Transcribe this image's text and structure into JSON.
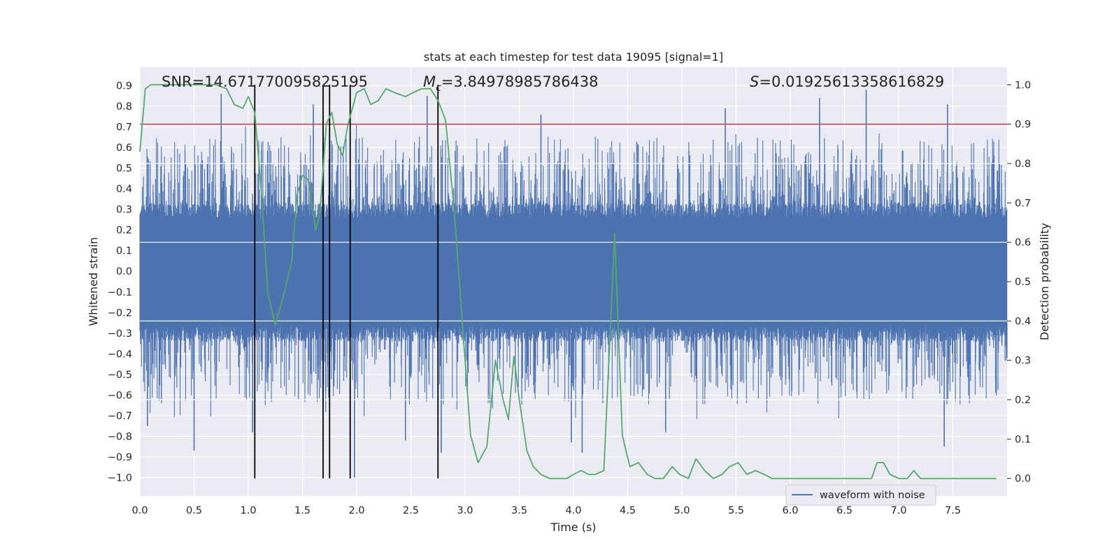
{
  "chart_data": {
    "type": "line",
    "title": "stats at each timestep for test data 19095 [signal=1]",
    "xlabel": "Time (s)",
    "ylabel": "Whitened strain",
    "ylabel_right": "Detection probability",
    "xlim": [
      0.0,
      8.0
    ],
    "ylim": [
      -1.09,
      0.99
    ],
    "ylim_right": [
      -0.045,
      1.045
    ],
    "x_ticks": [
      "0.0",
      "0.5",
      "1.0",
      "1.5",
      "2.0",
      "2.5",
      "3.0",
      "3.5",
      "4.0",
      "4.5",
      "5.0",
      "5.5",
      "6.0",
      "6.5",
      "7.0",
      "7.5"
    ],
    "y_ticks": [
      "0.9",
      "0.8",
      "0.7",
      "0.6",
      "0.5",
      "0.4",
      "0.3",
      "0.2",
      "0.1",
      "0.0",
      "−0.1",
      "−0.2",
      "−0.3",
      "−0.4",
      "−0.5",
      "−0.6",
      "−0.7",
      "−0.8",
      "−0.9",
      "−1.0"
    ],
    "y_ticks_right": [
      "1.0",
      "0.9",
      "0.8",
      "0.7",
      "0.6",
      "0.5",
      "0.4",
      "0.3",
      "0.2",
      "0.1",
      "0.0"
    ],
    "grid": true,
    "legend": {
      "placement": "lower-right",
      "entries": [
        "waveform with noise"
      ]
    },
    "annotations": {
      "snr": "SNR=14.671770095825195",
      "mc_symbol": "M",
      "mc_sub": "c",
      "mc_value": "=3.84978985786438",
      "s_symbol": "S",
      "s_value": "=0.01925613358616829"
    },
    "threshold": {
      "value": 0.9,
      "axis": "right",
      "color": "#c44e52"
    },
    "vertical_markers": [
      1.06,
      1.69,
      1.75,
      1.94,
      2.75
    ],
    "series": [
      {
        "name": "waveform with noise",
        "axis": "left",
        "color": "#4c72b0",
        "x_range": [
          0.0,
          8.0
        ],
        "note_render": "dense noisy waveform, envelope approx ±0.45 with spikes",
        "spikes": [
          {
            "x": 0.07,
            "y": -0.75
          },
          {
            "x": 0.5,
            "y": -0.87
          },
          {
            "x": 0.75,
            "y": 0.86
          },
          {
            "x": 1.04,
            "y": -0.78
          },
          {
            "x": 1.6,
            "y": 0.81
          },
          {
            "x": 1.98,
            "y": -1.0
          },
          {
            "x": 2.45,
            "y": -0.82
          },
          {
            "x": 2.65,
            "y": 0.85
          },
          {
            "x": 2.78,
            "y": -0.88
          },
          {
            "x": 3.7,
            "y": 0.76
          },
          {
            "x": 3.98,
            "y": -0.83
          },
          {
            "x": 4.08,
            "y": -0.88
          },
          {
            "x": 4.85,
            "y": -0.78
          },
          {
            "x": 5.4,
            "y": 0.79
          },
          {
            "x": 6.27,
            "y": 0.84
          },
          {
            "x": 6.7,
            "y": 0.88
          },
          {
            "x": 7.42,
            "y": -0.85
          },
          {
            "x": 7.45,
            "y": 0.81
          }
        ]
      },
      {
        "name": "",
        "axis": "right",
        "color": "#55a868",
        "x": [
          0.0,
          0.05,
          0.1,
          0.2,
          0.3,
          0.4,
          0.5,
          0.6,
          0.7,
          0.8,
          0.87,
          0.95,
          1.0,
          1.06,
          1.12,
          1.18,
          1.25,
          1.32,
          1.4,
          1.45,
          1.5,
          1.55,
          1.58,
          1.62,
          1.66,
          1.72,
          1.77,
          1.82,
          1.87,
          1.92,
          2.0,
          2.07,
          2.13,
          2.2,
          2.27,
          2.35,
          2.45,
          2.52,
          2.6,
          2.68,
          2.75,
          2.82,
          2.9,
          3.0,
          3.05,
          3.12,
          3.2,
          3.28,
          3.35,
          3.4,
          3.45,
          3.5,
          3.57,
          3.63,
          3.7,
          3.78,
          3.86,
          3.94,
          4.0,
          4.07,
          4.14,
          4.2,
          4.28,
          4.38,
          4.45,
          4.52,
          4.6,
          4.68,
          4.75,
          4.83,
          4.91,
          4.98,
          5.06,
          5.13,
          5.21,
          5.29,
          5.37,
          5.44,
          5.52,
          5.6,
          5.68,
          5.76,
          5.83,
          5.9,
          6.0,
          6.2,
          6.4,
          6.6,
          6.75,
          6.8,
          6.86,
          6.92,
          7.0,
          7.08,
          7.14,
          7.2,
          7.3,
          7.5,
          7.9
        ],
        "values": [
          0.83,
          0.99,
          1.0,
          1.0,
          1.0,
          1.0,
          1.0,
          1.0,
          1.0,
          0.99,
          0.95,
          0.94,
          0.97,
          0.93,
          0.73,
          0.47,
          0.39,
          0.46,
          0.55,
          0.72,
          0.77,
          0.76,
          0.71,
          0.63,
          0.67,
          0.9,
          0.93,
          0.85,
          0.82,
          0.9,
          0.98,
          0.99,
          0.95,
          0.96,
          0.99,
          0.98,
          0.97,
          0.98,
          0.99,
          0.99,
          0.96,
          0.91,
          0.68,
          0.3,
          0.11,
          0.04,
          0.08,
          0.3,
          0.2,
          0.15,
          0.31,
          0.2,
          0.07,
          0.03,
          0.01,
          0.0,
          0.0,
          0.0,
          0.01,
          0.02,
          0.01,
          0.01,
          0.02,
          0.62,
          0.11,
          0.03,
          0.04,
          0.01,
          0.0,
          0.0,
          0.03,
          0.01,
          0.0,
          0.05,
          0.02,
          0.0,
          0.01,
          0.03,
          0.04,
          0.01,
          0.02,
          0.01,
          0.0,
          0.0,
          0.0,
          0.0,
          0.0,
          0.0,
          0.0,
          0.04,
          0.04,
          0.01,
          0.0,
          0.0,
          0.02,
          0.0,
          0.0,
          0.0,
          0.0
        ]
      }
    ]
  }
}
